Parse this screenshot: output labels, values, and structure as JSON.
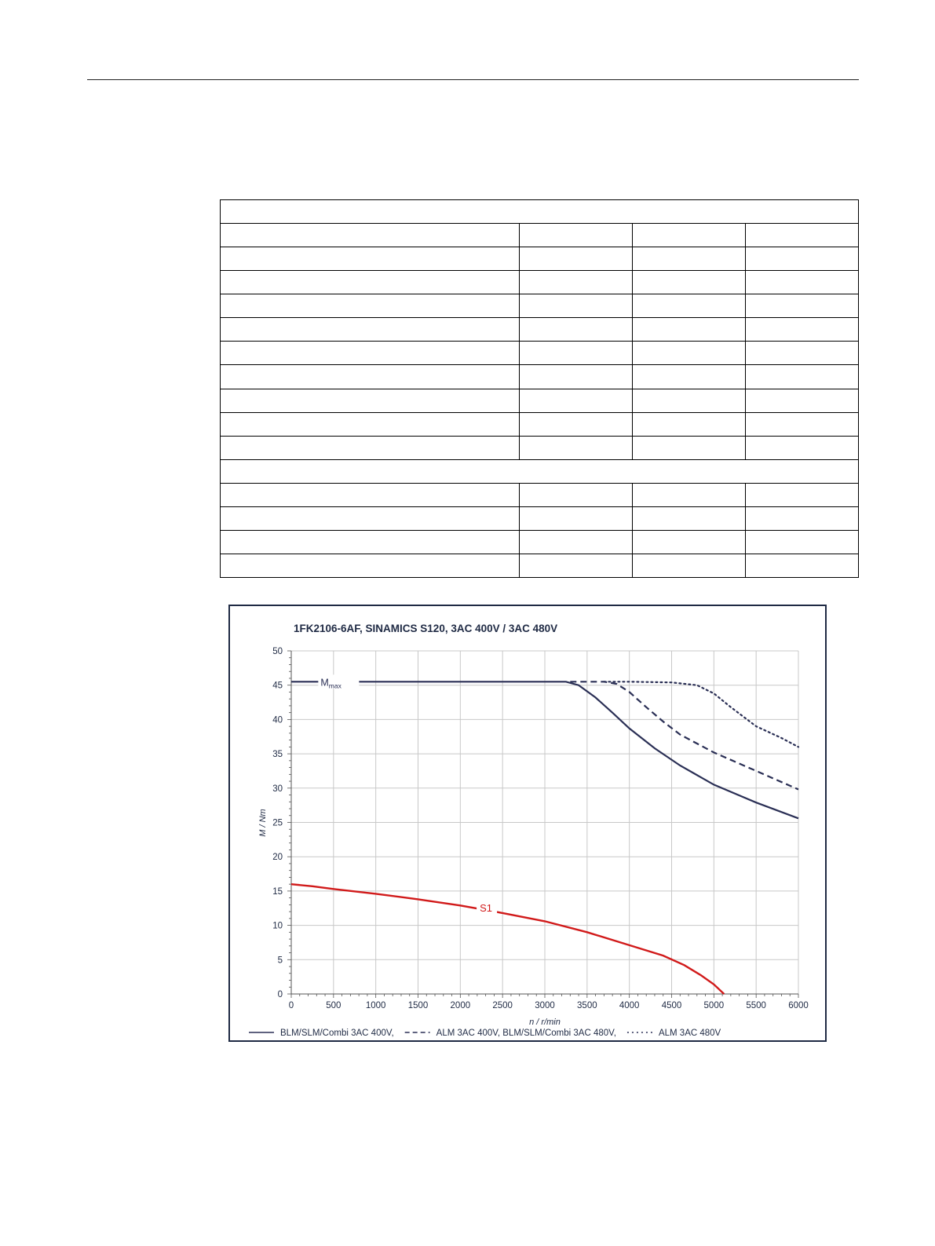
{
  "spec_table": {
    "rows": [
      {
        "type": "span"
      },
      {
        "type": "cells"
      },
      {
        "type": "cells"
      },
      {
        "type": "cells"
      },
      {
        "type": "cells"
      },
      {
        "type": "cells"
      },
      {
        "type": "cells"
      },
      {
        "type": "cells"
      },
      {
        "type": "cells"
      },
      {
        "type": "cells"
      },
      {
        "type": "cells"
      },
      {
        "type": "span"
      },
      {
        "type": "cells"
      },
      {
        "type": "cells"
      },
      {
        "type": "cells"
      },
      {
        "type": "cells"
      }
    ]
  },
  "chart_data": {
    "type": "line",
    "title": "1FK2106-6AF,  SINAMICS S120,  3AC 400V / 3AC 480V",
    "xlabel": "n / r/min",
    "ylabel": "M / Nm",
    "xlim": [
      0,
      6000
    ],
    "ylim": [
      0,
      50
    ],
    "xticks": [
      0,
      500,
      1000,
      1500,
      2000,
      2500,
      3000,
      3500,
      4000,
      4500,
      5000,
      5500,
      6000
    ],
    "yticks": [
      0,
      5,
      10,
      15,
      20,
      25,
      30,
      35,
      40,
      45,
      50
    ],
    "grid": true,
    "colors": {
      "mmax": "#2a2f55",
      "s1": "#d11a1a",
      "grid": "#c8c8c8",
      "frame": "#1f2a44"
    },
    "annotations": [
      {
        "text": "M",
        "sub": "max",
        "x": 700,
        "y": 45.5
      },
      {
        "text": "S1",
        "x": 2230,
        "y": 12.6
      }
    ],
    "series": [
      {
        "key": "blm400",
        "style": "solid",
        "color": "#2a2f55",
        "x": [
          0,
          500,
          1000,
          1500,
          2000,
          2500,
          3000,
          3250,
          3400,
          3600,
          3800,
          4000,
          4300,
          4600,
          5000,
          5500,
          6000
        ],
        "y": [
          45.5,
          45.5,
          45.5,
          45.5,
          45.5,
          45.5,
          45.5,
          45.5,
          45.0,
          43.2,
          41.0,
          38.7,
          35.8,
          33.3,
          30.5,
          27.9,
          25.6
        ]
      },
      {
        "key": "alm400",
        "style": "dashed",
        "color": "#2a2f55",
        "x": [
          3300,
          3500,
          3700,
          3850,
          4000,
          4200,
          4400,
          4600,
          5000,
          5500,
          6000
        ],
        "y": [
          45.5,
          45.5,
          45.5,
          45.2,
          44.0,
          41.8,
          39.7,
          37.8,
          35.2,
          32.5,
          29.8
        ]
      },
      {
        "key": "alm480",
        "style": "dotted",
        "color": "#2a2f55",
        "x": [
          3700,
          4000,
          4500,
          4800,
          5000,
          5200,
          5500,
          5800,
          6000
        ],
        "y": [
          45.5,
          45.5,
          45.4,
          45.0,
          43.8,
          41.8,
          39.0,
          37.3,
          36.0
        ]
      },
      {
        "key": "s1",
        "style": "solid",
        "color": "#d11a1a",
        "x": [
          0,
          250,
          500,
          1000,
          1500,
          2000,
          2500,
          3000,
          3500,
          4000,
          4400,
          4650,
          4850,
          5000,
          5120
        ],
        "y": [
          16.0,
          15.7,
          15.3,
          14.6,
          13.8,
          12.9,
          11.8,
          10.6,
          9.0,
          7.1,
          5.6,
          4.2,
          2.7,
          1.4,
          0
        ]
      }
    ],
    "legend": {
      "placement": "bottom",
      "entries": [
        {
          "style": "solid",
          "label": "BLM/SLM/Combi 3AC 400V,"
        },
        {
          "style": "dashed",
          "label": "ALM 3AC 400V, BLM/SLM/Combi 3AC 480V,"
        },
        {
          "style": "dotted",
          "label": "ALM 3AC 480V"
        }
      ]
    }
  }
}
